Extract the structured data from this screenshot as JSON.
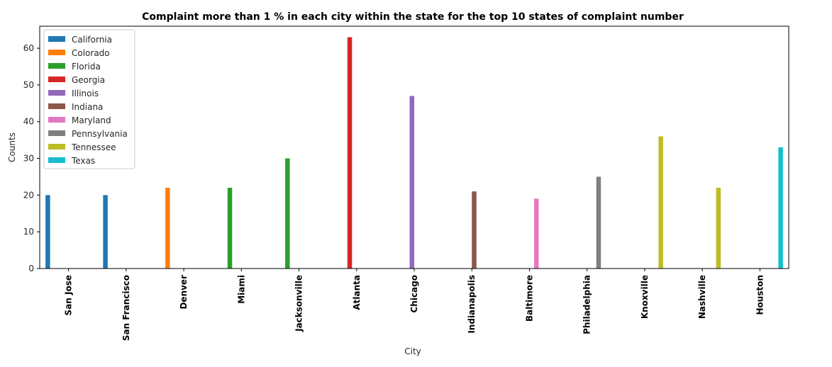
{
  "chart_data": {
    "type": "bar",
    "title": "Complaint more than 1 % in each city within the state for the top 10 states of complaint number",
    "xlabel": "City",
    "ylabel": "Counts",
    "ylim": [
      0,
      66
    ],
    "yticks": [
      0,
      10,
      20,
      30,
      40,
      50,
      60
    ],
    "grid": false,
    "legend_position": "top-left",
    "categories": [
      "San Jose",
      "San Francisco",
      "Denver",
      "Miami",
      "Jacksonville",
      "Atlanta",
      "Chicago",
      "Indianapolis",
      "Baltimore",
      "Philadelphia",
      "Knoxville",
      "Nashville",
      "Houston"
    ],
    "series": [
      {
        "name": "California",
        "color": "#1f77b4",
        "values": [
          20,
          20,
          null,
          null,
          null,
          null,
          null,
          null,
          null,
          null,
          null,
          null,
          null
        ]
      },
      {
        "name": "Colorado",
        "color": "#ff7f0e",
        "values": [
          null,
          null,
          22,
          null,
          null,
          null,
          null,
          null,
          null,
          null,
          null,
          null,
          null
        ]
      },
      {
        "name": "Florida",
        "color": "#2ca02c",
        "values": [
          null,
          null,
          null,
          22,
          30,
          null,
          null,
          null,
          null,
          null,
          null,
          null,
          null
        ]
      },
      {
        "name": "Georgia",
        "color": "#d62728",
        "values": [
          null,
          null,
          null,
          null,
          null,
          63,
          null,
          null,
          null,
          null,
          null,
          null,
          null
        ]
      },
      {
        "name": "Illinois",
        "color": "#9467bd",
        "values": [
          null,
          null,
          null,
          null,
          null,
          null,
          47,
          null,
          null,
          null,
          null,
          null,
          null
        ]
      },
      {
        "name": "Indiana",
        "color": "#8c564b",
        "values": [
          null,
          null,
          null,
          null,
          null,
          null,
          null,
          21,
          null,
          null,
          null,
          null,
          null
        ]
      },
      {
        "name": "Maryland",
        "color": "#e377c2",
        "values": [
          null,
          null,
          null,
          null,
          null,
          null,
          null,
          null,
          19,
          null,
          null,
          null,
          null
        ]
      },
      {
        "name": "Pennsylvania",
        "color": "#7f7f7f",
        "values": [
          null,
          null,
          null,
          null,
          null,
          null,
          null,
          null,
          null,
          25,
          null,
          null,
          null
        ]
      },
      {
        "name": "Tennessee",
        "color": "#bcbd22",
        "values": [
          null,
          null,
          null,
          null,
          null,
          null,
          null,
          null,
          null,
          null,
          36,
          22,
          null
        ]
      },
      {
        "name": "Texas",
        "color": "#17becf",
        "values": [
          null,
          null,
          null,
          null,
          null,
          null,
          null,
          null,
          null,
          null,
          null,
          null,
          33
        ]
      }
    ]
  }
}
